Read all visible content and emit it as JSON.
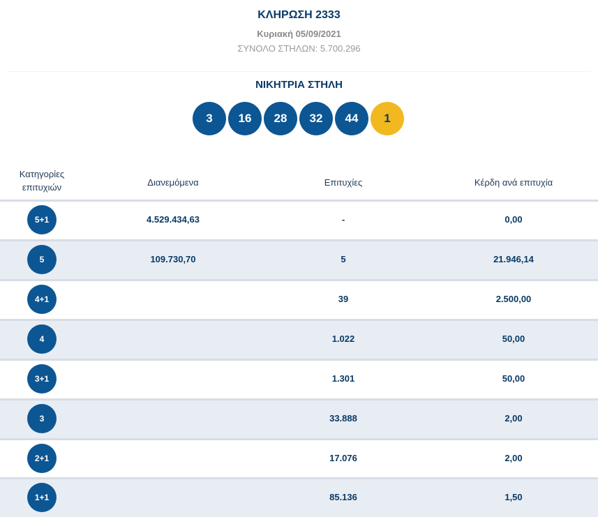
{
  "draw": {
    "title": "ΚΛΗΡΩΣΗ 2333",
    "date": "Κυριακή 05/09/2021",
    "total_columns": "ΣΥΝΟΛΟ ΣΤΗΛΩΝ: 5.700.296"
  },
  "winning": {
    "title": "ΝΙΚΗΤΡΙΑ ΣΤΗΛΗ",
    "numbers": [
      "3",
      "16",
      "28",
      "32",
      "44"
    ],
    "joker": "1"
  },
  "table": {
    "headers": {
      "category": "Κατηγορίες επιτυχιών",
      "distributed": "Διανεμόμενα",
      "winners": "Επιτυχίες",
      "prize": "Κέρδη ανά επιτυχία"
    },
    "rows": [
      {
        "category": "5+1",
        "distributed": "4.529.434,63",
        "winners": "-",
        "prize": "0,00"
      },
      {
        "category": "5",
        "distributed": "109.730,70",
        "winners": "5",
        "prize": "21.946,14"
      },
      {
        "category": "4+1",
        "distributed": "",
        "winners": "39",
        "prize": "2.500,00"
      },
      {
        "category": "4",
        "distributed": "",
        "winners": "1.022",
        "prize": "50,00"
      },
      {
        "category": "3+1",
        "distributed": "",
        "winners": "1.301",
        "prize": "50,00"
      },
      {
        "category": "3",
        "distributed": "",
        "winners": "33.888",
        "prize": "2,00"
      },
      {
        "category": "2+1",
        "distributed": "",
        "winners": "17.076",
        "prize": "2,00"
      },
      {
        "category": "1+1",
        "distributed": "",
        "winners": "85.136",
        "prize": "1,50"
      }
    ]
  },
  "colors": {
    "ball": "#0c5694",
    "joker_ball": "#f2b820",
    "text": "#0a3a66",
    "row_shade": "#e8edf4"
  }
}
